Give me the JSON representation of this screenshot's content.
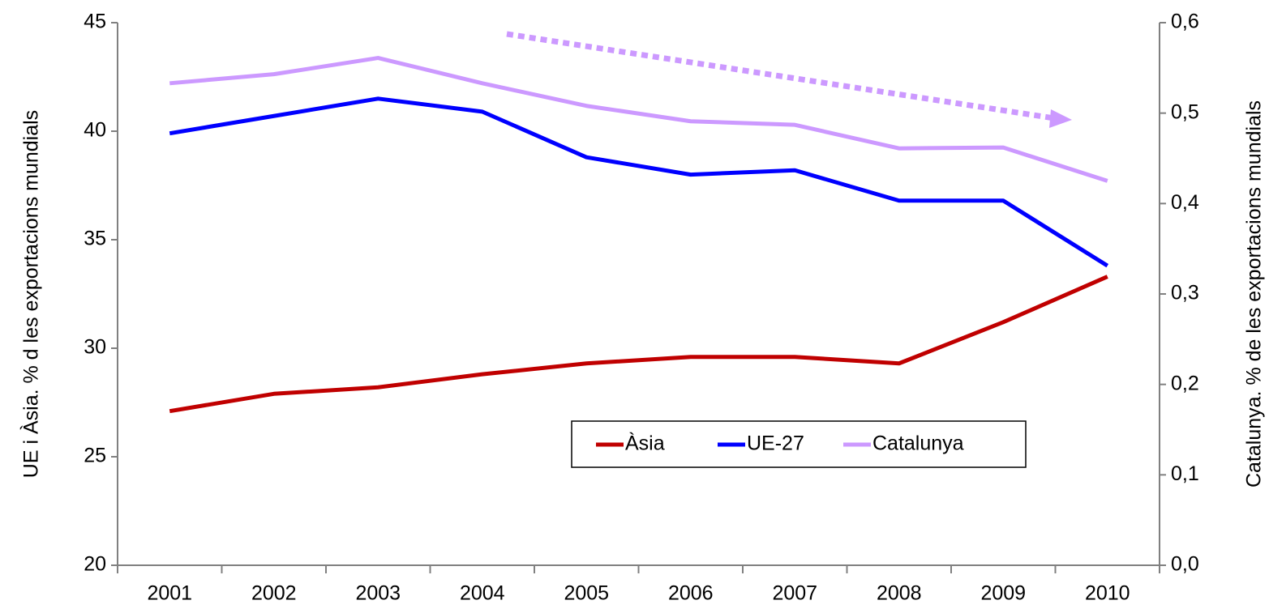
{
  "chart_data": {
    "type": "line",
    "y_label": "UE i Àsia. % d les exportacions mundials",
    "y2_label": "Catalunya. % de les exportacions mundials",
    "categories": [
      "2001",
      "2002",
      "2003",
      "2004",
      "2005",
      "2006",
      "2007",
      "2008",
      "2009",
      "2010"
    ],
    "series": [
      {
        "name": "Àsia",
        "color": "#c00000",
        "values": [
          27.1,
          27.9,
          28.2,
          28.8,
          29.3,
          29.6,
          29.6,
          29.3,
          31.2,
          33.3
        ]
      },
      {
        "name": "UE-27",
        "color": "#0000ff",
        "values": [
          39.9,
          40.7,
          41.5,
          40.9,
          38.8,
          38.0,
          38.2,
          36.8,
          36.8,
          33.8
        ]
      },
      {
        "name": "Catalunya",
        "color": "#cc99ff",
        "axis": "y2",
        "values": [
          0.533,
          0.543,
          0.561,
          0.533,
          0.508,
          0.491,
          0.487,
          0.461,
          0.462,
          0.425
        ]
      }
    ],
    "ylim": [
      20,
      45
    ],
    "yticks": [
      20,
      25,
      30,
      35,
      40,
      45
    ],
    "y2lim": [
      0,
      0.6
    ],
    "y2ticks": [
      {
        "value": 0,
        "label": "0,0"
      },
      {
        "value": 0.1,
        "label": "0,1"
      },
      {
        "value": 0.2,
        "label": "0,2"
      },
      {
        "value": 0.3,
        "label": "0,3"
      },
      {
        "value": 0.4,
        "label": "0,4"
      },
      {
        "value": 0.5,
        "label": "0,5"
      },
      {
        "value": 0.6,
        "label": "0,6"
      }
    ],
    "grid": false,
    "legend": "bottom"
  }
}
